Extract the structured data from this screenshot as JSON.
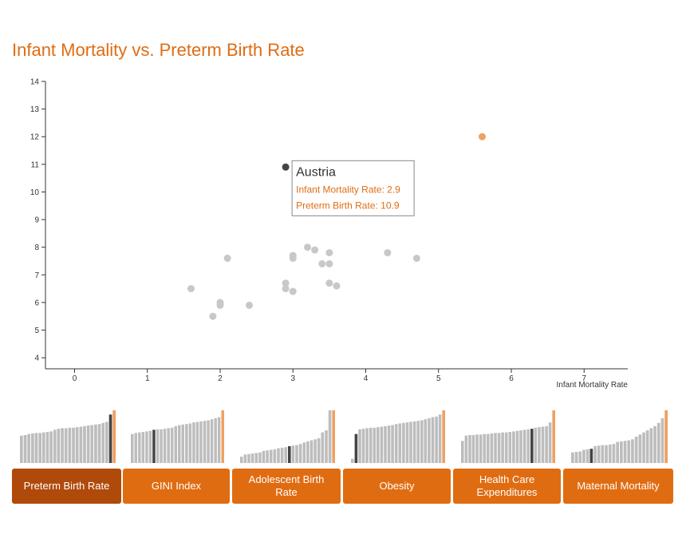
{
  "title": "Infant Mortality vs. Preterm Birth Rate",
  "colors": {
    "accent": "#e06c12",
    "active": "#b04a0a",
    "highlight": "#f0a060",
    "point": "#c8c8c8",
    "selected": "#444444",
    "bar": "#bdbdbd"
  },
  "chart_data": {
    "type": "scatter",
    "title": "Infant Mortality vs. Preterm Birth Rate",
    "xlabel": "Infant Mortality Rate",
    "ylabel": "",
    "xlim": [
      -0.4,
      7.6
    ],
    "ylim": [
      3.6,
      14
    ],
    "xticks": [
      0,
      1,
      2,
      3,
      4,
      5,
      6,
      7
    ],
    "yticks": [
      4,
      5,
      6,
      7,
      8,
      9,
      10,
      11,
      12,
      13,
      14
    ],
    "points": [
      {
        "x": 1.6,
        "y": 6.5
      },
      {
        "x": 1.9,
        "y": 5.5
      },
      {
        "x": 2.0,
        "y": 6.0
      },
      {
        "x": 2.0,
        "y": 5.9
      },
      {
        "x": 2.1,
        "y": 7.6
      },
      {
        "x": 2.4,
        "y": 5.9
      },
      {
        "x": 2.9,
        "y": 6.7
      },
      {
        "x": 2.9,
        "y": 6.5
      },
      {
        "x": 3.0,
        "y": 7.7
      },
      {
        "x": 3.0,
        "y": 7.6
      },
      {
        "x": 3.0,
        "y": 6.4
      },
      {
        "x": 3.2,
        "y": 8.0
      },
      {
        "x": 3.3,
        "y": 7.9
      },
      {
        "x": 3.4,
        "y": 7.4
      },
      {
        "x": 3.5,
        "y": 7.8
      },
      {
        "x": 3.5,
        "y": 7.4
      },
      {
        "x": 3.5,
        "y": 6.7
      },
      {
        "x": 3.6,
        "y": 6.6
      },
      {
        "x": 4.3,
        "y": 7.8
      },
      {
        "x": 4.7,
        "y": 7.6
      },
      {
        "x": 5.6,
        "y": 12.0,
        "highlight": true
      },
      {
        "x": 2.9,
        "y": 10.9,
        "selected": true
      }
    ],
    "tooltip": {
      "name": "Austria",
      "line1": "Infant Mortality Rate: 2.9",
      "line2": "Preterm Birth Rate: 10.9"
    }
  },
  "mini_charts": [
    {
      "label": "Preterm Birth Rate",
      "active": true,
      "values": [
        0.52,
        0.53,
        0.55,
        0.56,
        0.57,
        0.57,
        0.58,
        0.59,
        0.6,
        0.63,
        0.65,
        0.66,
        0.66,
        0.67,
        0.67,
        0.68,
        0.69,
        0.7,
        0.71,
        0.72,
        0.73,
        0.74,
        0.76,
        0.78,
        0.92,
        1.0
      ],
      "selected_index": 24,
      "highlight_index": 25
    },
    {
      "label": "GINI Index",
      "active": false,
      "values": [
        0.55,
        0.57,
        0.58,
        0.59,
        0.6,
        0.61,
        0.63,
        0.64,
        0.64,
        0.65,
        0.66,
        0.67,
        0.7,
        0.72,
        0.73,
        0.74,
        0.75,
        0.77,
        0.78,
        0.79,
        0.8,
        0.81,
        0.83,
        0.85,
        0.87,
        1.0
      ],
      "selected_index": 6,
      "highlight_index": 25
    },
    {
      "label": "Adolescent Birth Rate",
      "active": false,
      "values": [
        0.12,
        0.16,
        0.17,
        0.18,
        0.19,
        0.2,
        0.23,
        0.24,
        0.25,
        0.26,
        0.28,
        0.29,
        0.3,
        0.32,
        0.33,
        0.34,
        0.36,
        0.39,
        0.41,
        0.43,
        0.45,
        0.47,
        0.58,
        0.62,
        1.0,
        1.0
      ],
      "selected_index": 13,
      "highlight_index": 25
    },
    {
      "label": "Obesity",
      "active": false,
      "values": [
        0.08,
        0.55,
        0.64,
        0.65,
        0.66,
        0.67,
        0.67,
        0.68,
        0.69,
        0.7,
        0.71,
        0.72,
        0.74,
        0.75,
        0.76,
        0.77,
        0.78,
        0.79,
        0.8,
        0.81,
        0.83,
        0.85,
        0.87,
        0.88,
        0.92,
        1.0
      ],
      "selected_index": 1,
      "highlight_index": 25
    },
    {
      "label": "Health Care Expenditures",
      "active": false,
      "values": [
        0.42,
        0.52,
        0.53,
        0.53,
        0.54,
        0.54,
        0.55,
        0.55,
        0.56,
        0.57,
        0.57,
        0.58,
        0.58,
        0.59,
        0.6,
        0.61,
        0.62,
        0.63,
        0.64,
        0.65,
        0.67,
        0.68,
        0.69,
        0.7,
        0.77,
        1.0
      ],
      "selected_index": 19,
      "highlight_index": 25
    },
    {
      "label": "Maternal Mortality",
      "active": false,
      "values": [
        0.2,
        0.21,
        0.22,
        0.25,
        0.26,
        0.27,
        0.32,
        0.33,
        0.34,
        0.34,
        0.35,
        0.36,
        0.4,
        0.41,
        0.42,
        0.43,
        0.45,
        0.5,
        0.54,
        0.58,
        0.62,
        0.66,
        0.7,
        0.76,
        0.85,
        1.0
      ],
      "selected_index": 5,
      "highlight_index": 25
    }
  ]
}
